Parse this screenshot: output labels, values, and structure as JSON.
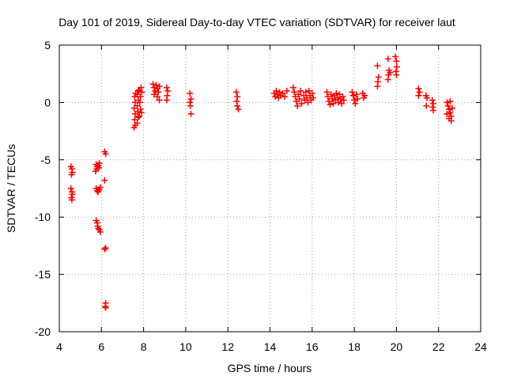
{
  "chart_data": {
    "type": "scatter",
    "title": "Day 101 of 2019, Sidereal Day-to-day VTEC variation (SDTVAR) for receiver laut",
    "xlabel": "GPS time / hours",
    "ylabel": "SDTVAR / TECUs",
    "xlim": [
      4,
      24
    ],
    "ylim": [
      -20,
      5
    ],
    "xticks": [
      4,
      6,
      8,
      10,
      12,
      14,
      16,
      18,
      20,
      22,
      24
    ],
    "yticks": [
      5,
      0,
      -5,
      -10,
      -15,
      -20
    ],
    "xtick_labels": [
      "4",
      "6",
      "8",
      "10",
      "12",
      "14",
      "16",
      "18",
      "20",
      "22",
      "24"
    ],
    "ytick_labels": [
      "5",
      "0",
      "-5",
      "-10",
      "-15",
      "-20"
    ],
    "grid": true,
    "marker": "+",
    "series": [
      {
        "name": "SDTVAR",
        "color": "#ff0000",
        "points": [
          [
            4.55,
            -5.6
          ],
          [
            4.6,
            -5.8
          ],
          [
            4.62,
            -6.1
          ],
          [
            4.58,
            -6.3
          ],
          [
            4.55,
            -7.5
          ],
          [
            4.6,
            -7.8
          ],
          [
            4.62,
            -8.0
          ],
          [
            4.57,
            -8.3
          ],
          [
            4.6,
            -8.5
          ],
          [
            5.75,
            -5.4
          ],
          [
            5.8,
            -5.6
          ],
          [
            5.78,
            -5.8
          ],
          [
            5.72,
            -6.0
          ],
          [
            5.85,
            -5.5
          ],
          [
            5.9,
            -5.3
          ],
          [
            5.88,
            -5.7
          ],
          [
            5.75,
            -7.5
          ],
          [
            5.8,
            -7.7
          ],
          [
            5.85,
            -7.8
          ],
          [
            5.9,
            -7.6
          ],
          [
            5.95,
            -7.4
          ],
          [
            5.75,
            -10.3
          ],
          [
            5.8,
            -10.5
          ],
          [
            5.82,
            -10.8
          ],
          [
            5.85,
            -11.0
          ],
          [
            5.9,
            -11.1
          ],
          [
            5.95,
            -11.3
          ],
          [
            6.15,
            -4.3
          ],
          [
            6.2,
            -4.5
          ],
          [
            6.15,
            -6.8
          ],
          [
            6.2,
            -12.7
          ],
          [
            6.15,
            -12.8
          ],
          [
            6.2,
            -17.5
          ],
          [
            6.18,
            -17.8
          ],
          [
            6.2,
            -17.9
          ],
          [
            7.55,
            -2.2
          ],
          [
            7.6,
            -2.0
          ],
          [
            7.58,
            -1.5
          ],
          [
            7.6,
            -1.0
          ],
          [
            7.55,
            -0.5
          ],
          [
            7.6,
            0.0
          ],
          [
            7.58,
            0.5
          ],
          [
            7.62,
            0.8
          ],
          [
            7.7,
            -1.8
          ],
          [
            7.75,
            -1.3
          ],
          [
            7.72,
            -0.8
          ],
          [
            7.7,
            -0.3
          ],
          [
            7.75,
            0.2
          ],
          [
            7.7,
            0.7
          ],
          [
            7.75,
            1.0
          ],
          [
            7.8,
            -1.2
          ],
          [
            7.85,
            -0.6
          ],
          [
            7.82,
            0.0
          ],
          [
            7.85,
            0.5
          ],
          [
            7.8,
            1.1
          ],
          [
            7.88,
            1.3
          ],
          [
            7.9,
            -0.9
          ],
          [
            7.92,
            0.9
          ],
          [
            8.45,
            1.6
          ],
          [
            8.5,
            1.3
          ],
          [
            8.55,
            1.0
          ],
          [
            8.5,
            0.7
          ],
          [
            8.6,
            1.5
          ],
          [
            8.65,
            1.2
          ],
          [
            8.7,
            0.9
          ],
          [
            8.65,
            0.5
          ],
          [
            8.75,
            1.4
          ],
          [
            8.75,
            0.2
          ],
          [
            9.1,
            1.3
          ],
          [
            9.15,
            1.0
          ],
          [
            9.12,
            0.6
          ],
          [
            9.1,
            0.2
          ],
          [
            10.2,
            0.8
          ],
          [
            10.25,
            0.3
          ],
          [
            10.2,
            0.0
          ],
          [
            10.22,
            -0.3
          ],
          [
            10.25,
            -1.0
          ],
          [
            12.4,
            0.9
          ],
          [
            12.45,
            0.5
          ],
          [
            12.42,
            0.1
          ],
          [
            12.45,
            -0.3
          ],
          [
            12.5,
            -0.6
          ],
          [
            14.2,
            0.8
          ],
          [
            14.25,
            0.5
          ],
          [
            14.3,
            1.0
          ],
          [
            14.35,
            0.7
          ],
          [
            14.4,
            0.4
          ],
          [
            14.45,
            0.9
          ],
          [
            14.5,
            0.6
          ],
          [
            14.6,
            0.8
          ],
          [
            14.7,
            0.5
          ],
          [
            14.8,
            1.0
          ],
          [
            15.1,
            1.3
          ],
          [
            15.15,
            0.9
          ],
          [
            15.2,
            0.5
          ],
          [
            15.25,
            0.1
          ],
          [
            15.3,
            -0.3
          ],
          [
            15.35,
            0.7
          ],
          [
            15.4,
            0.3
          ],
          [
            15.45,
            1.0
          ],
          [
            15.5,
            -0.1
          ],
          [
            15.6,
            0.6
          ],
          [
            15.65,
            0.2
          ],
          [
            15.7,
            0.9
          ],
          [
            15.75,
            0.4
          ],
          [
            15.8,
            0.0
          ],
          [
            15.85,
            1.0
          ],
          [
            15.9,
            0.6
          ],
          [
            15.95,
            0.2
          ],
          [
            16.0,
            0.8
          ],
          [
            16.05,
            0.4
          ],
          [
            16.7,
            0.9
          ],
          [
            16.75,
            0.5
          ],
          [
            16.8,
            0.1
          ],
          [
            16.85,
            -0.2
          ],
          [
            16.9,
            0.7
          ],
          [
            16.95,
            0.3
          ],
          [
            17.0,
            -0.1
          ],
          [
            17.05,
            0.6
          ],
          [
            17.1,
            0.2
          ],
          [
            17.15,
            0.8
          ],
          [
            17.2,
            0.4
          ],
          [
            17.25,
            0.0
          ],
          [
            17.3,
            0.7
          ],
          [
            17.35,
            0.3
          ],
          [
            17.4,
            -0.1
          ],
          [
            17.45,
            0.5
          ],
          [
            17.5,
            0.2
          ],
          [
            17.9,
            0.9
          ],
          [
            17.95,
            0.6
          ],
          [
            18.0,
            0.2
          ],
          [
            18.05,
            -0.1
          ],
          [
            18.1,
            0.7
          ],
          [
            18.15,
            0.3
          ],
          [
            18.4,
            0.8
          ],
          [
            18.45,
            0.4
          ],
          [
            18.5,
            0.6
          ],
          [
            19.1,
            3.2
          ],
          [
            19.15,
            2.2
          ],
          [
            19.12,
            1.8
          ],
          [
            19.1,
            1.4
          ],
          [
            19.6,
            3.8
          ],
          [
            19.65,
            2.8
          ],
          [
            19.62,
            2.4
          ],
          [
            19.7,
            2.6
          ],
          [
            19.6,
            2.0
          ],
          [
            19.95,
            4.0
          ],
          [
            20.0,
            3.6
          ],
          [
            20.02,
            3.1
          ],
          [
            19.98,
            2.7
          ],
          [
            20.0,
            2.4
          ],
          [
            21.05,
            1.2
          ],
          [
            21.1,
            0.9
          ],
          [
            21.05,
            0.6
          ],
          [
            21.4,
            0.6
          ],
          [
            21.45,
            0.4
          ],
          [
            21.42,
            -0.3
          ],
          [
            21.7,
            0.2
          ],
          [
            21.75,
            -0.1
          ],
          [
            21.72,
            -0.4
          ],
          [
            21.75,
            -0.7
          ],
          [
            22.4,
            0.0
          ],
          [
            22.45,
            -0.3
          ],
          [
            22.5,
            -0.6
          ],
          [
            22.55,
            -0.9
          ],
          [
            22.6,
            -1.2
          ],
          [
            22.4,
            -1.0
          ],
          [
            22.5,
            -1.4
          ],
          [
            22.6,
            -1.6
          ],
          [
            22.55,
            0.1
          ],
          [
            22.65,
            -0.5
          ]
        ]
      }
    ]
  }
}
